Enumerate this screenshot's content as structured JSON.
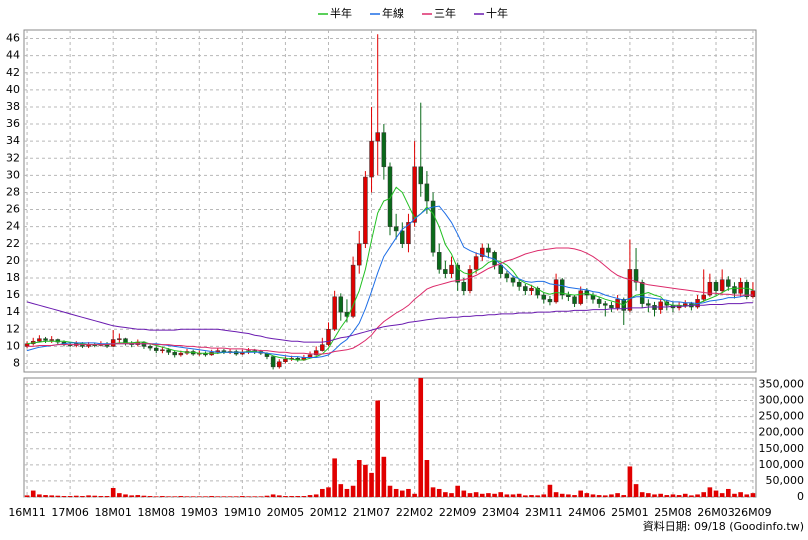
{
  "chart_data": {
    "type": "candlestick",
    "categories": [
      "16M11",
      null,
      null,
      null,
      null,
      null,
      null,
      "17M06",
      null,
      null,
      null,
      null,
      null,
      null,
      "18M01",
      null,
      null,
      null,
      null,
      null,
      null,
      "18M08",
      null,
      null,
      null,
      null,
      null,
      null,
      "19M03",
      null,
      null,
      null,
      null,
      null,
      null,
      "19M10",
      null,
      null,
      null,
      null,
      null,
      null,
      "20M05",
      null,
      null,
      null,
      null,
      null,
      null,
      "20M12",
      null,
      null,
      null,
      null,
      null,
      null,
      "21M07",
      null,
      null,
      null,
      null,
      null,
      null,
      "22M02",
      null,
      null,
      null,
      null,
      null,
      null,
      "22M09",
      null,
      null,
      null,
      null,
      null,
      null,
      "23M04",
      null,
      null,
      null,
      null,
      null,
      null,
      "23M11",
      null,
      null,
      null,
      null,
      null,
      null,
      "24M06",
      null,
      null,
      null,
      null,
      null,
      null,
      "25M01",
      null,
      null,
      null,
      null,
      null,
      null,
      "25M08",
      null,
      null,
      null,
      null,
      null,
      null,
      "26M03",
      null,
      null,
      null,
      null,
      null,
      "26M09"
    ],
    "open": [
      10.0,
      10.3,
      10.6,
      10.9,
      10.7,
      10.8,
      10.5,
      10.2,
      10.1,
      10.3,
      10.0,
      10.2,
      10.1,
      10.3,
      10.0,
      10.8,
      10.9,
      10.4,
      10.2,
      10.5,
      10.0,
      9.8,
      9.5,
      9.6,
      9.3,
      9.0,
      9.2,
      9.4,
      9.1,
      9.2,
      9.0,
      9.3,
      9.5,
      9.3,
      9.4,
      9.1,
      9.3,
      9.5,
      9.4,
      9.2,
      8.8,
      7.6,
      8.2,
      8.5,
      8.6,
      8.4,
      8.7,
      9.0,
      9.5,
      10.2,
      12.0,
      15.8,
      14.0,
      13.5,
      19.5,
      22.0,
      29.8,
      34.0,
      35.0,
      31.0,
      24.0,
      23.5,
      22.0,
      24.5,
      31.0,
      29.0,
      27.0,
      21.0,
      19.0,
      18.5,
      19.5,
      17.5,
      16.5,
      19.0,
      20.5,
      21.5,
      21.0,
      19.5,
      18.5,
      18.0,
      17.5,
      17.0,
      16.5,
      16.8,
      16.0,
      15.5,
      15.2,
      17.8,
      16.0,
      15.8,
      15.0,
      16.5,
      16.0,
      15.5,
      15.0,
      14.8,
      14.5,
      15.5,
      14.2,
      19.0,
      17.5,
      15.0,
      14.8,
      14.3,
      15.2,
      14.8,
      14.5,
      14.8,
      15.0,
      14.6,
      15.5,
      16.0,
      17.5,
      16.5,
      17.8,
      17.0,
      16.2,
      17.5,
      15.8
    ],
    "high": [
      10.6,
      11.0,
      11.3,
      11.1,
      11.2,
      10.9,
      10.7,
      10.5,
      10.6,
      10.5,
      10.5,
      10.4,
      10.6,
      10.5,
      11.9,
      11.5,
      11.0,
      10.6,
      10.8,
      10.6,
      10.2,
      10.0,
      9.9,
      9.8,
      9.5,
      9.5,
      9.7,
      9.6,
      9.5,
      9.4,
      9.6,
      9.8,
      9.7,
      9.7,
      9.6,
      9.6,
      9.8,
      9.7,
      9.6,
      9.3,
      8.9,
      8.5,
      8.8,
      8.9,
      8.8,
      9.0,
      9.4,
      10.0,
      11.0,
      12.8,
      16.5,
      16.2,
      15.5,
      20.5,
      23.5,
      30.5,
      38.0,
      46.5,
      36.0,
      31.5,
      25.5,
      24.5,
      25.5,
      34.0,
      38.5,
      30.5,
      28.0,
      22.0,
      20.0,
      20.5,
      19.8,
      18.0,
      19.5,
      21.0,
      22.0,
      22.0,
      21.2,
      19.8,
      18.8,
      18.3,
      17.8,
      17.3,
      17.2,
      17.0,
      16.3,
      15.9,
      18.5,
      18.0,
      16.4,
      16.0,
      17.0,
      16.8,
      16.3,
      15.8,
      15.3,
      15.2,
      16.0,
      15.7,
      22.5,
      21.5,
      17.8,
      15.5,
      15.2,
      15.6,
      15.4,
      15.2,
      15.2,
      15.4,
      15.2,
      16.0,
      19.0,
      18.5,
      17.8,
      19.0,
      18.2,
      17.5,
      18.0,
      17.8,
      17.5
    ],
    "low": [
      9.8,
      10.1,
      10.5,
      10.4,
      10.4,
      10.2,
      10.0,
      9.9,
      9.9,
      9.8,
      9.8,
      9.9,
      10.0,
      9.8,
      9.9,
      10.4,
      10.1,
      9.9,
      10.0,
      9.7,
      9.5,
      9.2,
      9.2,
      9.0,
      8.7,
      8.8,
      9.0,
      8.9,
      8.9,
      8.8,
      8.9,
      9.1,
      9.1,
      9.1,
      8.9,
      9.0,
      9.1,
      9.1,
      9.0,
      8.5,
      7.3,
      7.4,
      8.0,
      8.3,
      8.2,
      8.3,
      8.6,
      8.9,
      9.4,
      10.0,
      11.8,
      13.0,
      12.8,
      13.3,
      18.5,
      21.5,
      28.0,
      30.0,
      29.5,
      23.0,
      22.5,
      21.5,
      21.0,
      24.0,
      27.5,
      25.5,
      20.5,
      18.5,
      18.0,
      18.0,
      16.5,
      16.0,
      16.2,
      18.5,
      20.0,
      20.3,
      19.0,
      18.0,
      17.5,
      17.0,
      16.5,
      16.0,
      16.0,
      15.6,
      15.0,
      14.8,
      15.0,
      15.5,
      15.3,
      14.6,
      14.8,
      15.5,
      15.0,
      14.5,
      13.5,
      14.0,
      14.2,
      12.5,
      14.0,
      16.5,
      14.5,
      14.0,
      13.5,
      13.8,
      14.2,
      14.0,
      14.2,
      14.5,
      14.2,
      14.4,
      15.2,
      15.8,
      16.0,
      16.2,
      16.5,
      15.6,
      15.8,
      15.5,
      15.6
    ],
    "close": [
      10.3,
      10.6,
      10.9,
      10.7,
      10.8,
      10.5,
      10.2,
      10.1,
      10.3,
      10.0,
      10.2,
      10.1,
      10.3,
      10.0,
      10.8,
      10.9,
      10.4,
      10.2,
      10.5,
      10.0,
      9.8,
      9.5,
      9.6,
      9.3,
      9.0,
      9.2,
      9.4,
      9.1,
      9.2,
      9.0,
      9.3,
      9.5,
      9.3,
      9.4,
      9.1,
      9.3,
      9.5,
      9.4,
      9.2,
      8.8,
      7.6,
      8.2,
      8.5,
      8.6,
      8.4,
      8.7,
      9.0,
      9.5,
      10.2,
      12.0,
      15.8,
      14.0,
      13.5,
      19.5,
      22.0,
      29.8,
      34.0,
      35.0,
      31.0,
      24.0,
      23.5,
      22.0,
      24.5,
      31.0,
      29.0,
      27.0,
      21.0,
      19.0,
      18.5,
      19.5,
      17.5,
      16.5,
      19.0,
      20.5,
      21.5,
      21.0,
      19.5,
      18.5,
      18.0,
      17.5,
      17.0,
      16.5,
      16.8,
      16.0,
      15.5,
      15.2,
      17.8,
      16.0,
      15.8,
      15.0,
      16.5,
      16.0,
      15.5,
      15.0,
      14.8,
      14.5,
      15.5,
      14.2,
      19.0,
      17.5,
      15.0,
      14.8,
      14.3,
      15.2,
      14.8,
      14.5,
      14.8,
      15.0,
      14.6,
      15.5,
      16.0,
      17.5,
      16.5,
      17.8,
      17.0,
      16.2,
      17.5,
      15.8,
      16.5
    ],
    "volume": [
      5000,
      20000,
      8000,
      6000,
      5000,
      4000,
      3000,
      3000,
      4000,
      3000,
      5000,
      4000,
      3000,
      3000,
      28000,
      12000,
      8000,
      5000,
      6000,
      4000,
      3000,
      2000,
      3000,
      2000,
      2000,
      3000,
      2000,
      2000,
      2000,
      2000,
      3000,
      2000,
      2000,
      2000,
      2000,
      3000,
      2000,
      2000,
      2000,
      4000,
      8000,
      5000,
      3000,
      3000,
      3000,
      3000,
      6000,
      8000,
      25000,
      30000,
      120000,
      40000,
      25000,
      35000,
      115000,
      100000,
      75000,
      300000,
      125000,
      35000,
      25000,
      20000,
      25000,
      10000,
      370000,
      115000,
      30000,
      25000,
      15000,
      12000,
      35000,
      20000,
      12000,
      15000,
      10000,
      12000,
      10000,
      15000,
      8000,
      8000,
      10000,
      5000,
      6000,
      5000,
      8000,
      38000,
      15000,
      10000,
      8000,
      6000,
      20000,
      12000,
      8000,
      6000,
      5000,
      8000,
      12000,
      6000,
      95000,
      40000,
      15000,
      12000,
      8000,
      10000,
      6000,
      8000,
      6000,
      10000,
      5000,
      8000,
      15000,
      30000,
      20000,
      12000,
      25000,
      10000,
      15000,
      8000,
      12000
    ],
    "series": [
      {
        "name": "半年",
        "color": "#22c022",
        "values": [
          10.3,
          10.4,
          10.5,
          10.6,
          10.6,
          10.6,
          10.6,
          10.5,
          10.4,
          10.3,
          10.2,
          10.2,
          10.2,
          10.2,
          10.3,
          10.4,
          10.4,
          10.4,
          10.5,
          10.5,
          10.3,
          10.1,
          9.9,
          9.7,
          9.5,
          9.4,
          9.3,
          9.3,
          9.2,
          9.2,
          9.2,
          9.2,
          9.3,
          9.3,
          9.3,
          9.3,
          9.4,
          9.4,
          9.3,
          9.2,
          8.9,
          8.7,
          8.6,
          8.5,
          8.4,
          8.4,
          8.6,
          8.8,
          9.1,
          9.8,
          11.0,
          12.2,
          13.2,
          14.8,
          16.5,
          19.0,
          22.4,
          25.6,
          27.0,
          27.3,
          28.6,
          28.0,
          26.5,
          25.0,
          25.5,
          26.3,
          25.5,
          24.0,
          21.9,
          20.8,
          19.1,
          18.6,
          18.4,
          18.8,
          19.2,
          19.8,
          20.1,
          19.9,
          19.5,
          18.8,
          17.8,
          17.4,
          17.1,
          16.7,
          16.3,
          16.1,
          16.3,
          16.2,
          16.1,
          16.0,
          16.1,
          16.2,
          16.0,
          15.8,
          15.5,
          15.3,
          15.1,
          14.8,
          15.6,
          16.0,
          16.1,
          16.3,
          16.0,
          15.8,
          15.0,
          14.8,
          14.8,
          14.7,
          14.8,
          15.0,
          15.3,
          15.6,
          15.9,
          16.3,
          16.7,
          16.8,
          16.8,
          16.8,
          16.6
        ]
      },
      {
        "name": "年線",
        "color": "#1e6ee6",
        "values": [
          9.5,
          9.7,
          9.9,
          10.0,
          10.1,
          10.2,
          10.3,
          10.4,
          10.4,
          10.4,
          10.4,
          10.4,
          10.3,
          10.3,
          10.3,
          10.3,
          10.3,
          10.3,
          10.3,
          10.3,
          10.3,
          10.3,
          10.2,
          10.1,
          10.0,
          9.9,
          9.8,
          9.7,
          9.6,
          9.5,
          9.4,
          9.3,
          9.3,
          9.3,
          9.3,
          9.3,
          9.3,
          9.3,
          9.3,
          9.2,
          9.1,
          9.0,
          8.9,
          8.8,
          8.8,
          8.7,
          8.7,
          8.7,
          8.8,
          9.0,
          9.6,
          10.3,
          10.8,
          11.7,
          12.7,
          14.4,
          16.4,
          18.6,
          20.5,
          21.6,
          22.7,
          23.7,
          24.2,
          24.9,
          25.5,
          26.1,
          26.3,
          26.4,
          25.5,
          24.5,
          23.1,
          21.6,
          21.2,
          20.9,
          20.7,
          20.4,
          20.2,
          19.6,
          18.9,
          18.2,
          17.9,
          17.6,
          17.5,
          17.6,
          17.6,
          17.3,
          17.2,
          17.1,
          16.9,
          16.8,
          16.7,
          16.6,
          16.4,
          16.3,
          16.0,
          15.8,
          15.6,
          15.4,
          15.6,
          15.8,
          15.8,
          15.7,
          15.6,
          15.5,
          15.4,
          15.2,
          15.2,
          15.1,
          15.1,
          15.0,
          15.1,
          15.3,
          15.4,
          15.5,
          15.7,
          15.7,
          15.8,
          16.0,
          16.0
        ]
      },
      {
        "name": "三年",
        "color": "#dc2a6a",
        "values": [
          10.0,
          10.0,
          10.1,
          10.1,
          10.1,
          10.2,
          10.2,
          10.2,
          10.2,
          10.2,
          10.2,
          10.2,
          10.2,
          10.2,
          10.3,
          10.3,
          10.3,
          10.3,
          10.3,
          10.3,
          10.3,
          10.2,
          10.2,
          10.2,
          10.1,
          10.1,
          10.0,
          10.0,
          9.9,
          9.9,
          9.8,
          9.8,
          9.8,
          9.7,
          9.7,
          9.7,
          9.6,
          9.6,
          9.5,
          9.5,
          9.4,
          9.3,
          9.3,
          9.2,
          9.2,
          9.2,
          9.1,
          9.1,
          9.1,
          9.2,
          9.4,
          9.5,
          9.6,
          9.8,
          10.2,
          10.7,
          11.3,
          12.2,
          12.9,
          13.4,
          13.9,
          14.3,
          14.8,
          15.5,
          16.1,
          16.7,
          17.0,
          17.2,
          17.4,
          17.6,
          17.7,
          17.8,
          18.0,
          18.3,
          18.7,
          19.1,
          19.4,
          19.7,
          20.0,
          20.2,
          20.5,
          20.8,
          21.0,
          21.2,
          21.3,
          21.4,
          21.5,
          21.5,
          21.5,
          21.4,
          21.2,
          20.9,
          20.5,
          20.0,
          19.4,
          18.8,
          18.3,
          18.0,
          17.8,
          17.6,
          17.4,
          17.2,
          17.1,
          17.0,
          16.9,
          16.8,
          16.7,
          16.6,
          16.5,
          16.4,
          16.3,
          16.2,
          16.2,
          16.1,
          16.1,
          16.0,
          16.0,
          16.0,
          16.0
        ]
      },
      {
        "name": "十年",
        "color": "#6a1bb0",
        "values": [
          15.2,
          15.0,
          14.8,
          14.6,
          14.4,
          14.2,
          14.0,
          13.8,
          13.6,
          13.4,
          13.2,
          13.0,
          12.8,
          12.6,
          12.4,
          12.3,
          12.2,
          12.1,
          12.0,
          12.0,
          11.9,
          11.9,
          11.9,
          11.9,
          11.9,
          12.0,
          12.0,
          12.0,
          12.0,
          12.0,
          12.0,
          12.0,
          11.9,
          11.8,
          11.7,
          11.6,
          11.5,
          11.3,
          11.2,
          11.0,
          10.9,
          10.8,
          10.7,
          10.6,
          10.6,
          10.5,
          10.5,
          10.5,
          10.5,
          10.6,
          10.8,
          11.0,
          11.1,
          11.3,
          11.5,
          11.7,
          11.9,
          12.1,
          12.3,
          12.4,
          12.5,
          12.6,
          12.8,
          12.9,
          13.0,
          13.1,
          13.2,
          13.3,
          13.3,
          13.4,
          13.4,
          13.5,
          13.5,
          13.6,
          13.6,
          13.7,
          13.7,
          13.8,
          13.8,
          13.8,
          13.9,
          13.9,
          13.9,
          14.0,
          14.0,
          14.0,
          14.1,
          14.1,
          14.1,
          14.2,
          14.2,
          14.2,
          14.3,
          14.3,
          14.3,
          14.4,
          14.4,
          14.4,
          14.5,
          14.5,
          14.5,
          14.6,
          14.6,
          14.6,
          14.6,
          14.7,
          14.7,
          14.7,
          14.8,
          14.8,
          14.8,
          14.9,
          14.9,
          14.9,
          15.0,
          15.0,
          15.0,
          15.1,
          15.1
        ]
      }
    ],
    "up_color": "#e00000",
    "down_color": "#0a6a1a",
    "volume_color": "#e00000",
    "ylim": [
      7,
      47
    ],
    "yticks": [
      8,
      10,
      12,
      14,
      16,
      18,
      20,
      22,
      24,
      26,
      28,
      30,
      32,
      34,
      36,
      38,
      40,
      42,
      44,
      46
    ],
    "y2lim": [
      0,
      370000
    ],
    "y2ticks": [
      0,
      {
        "value": 50000,
        "label": "50,000"
      },
      {
        "value": 100000,
        "label": "100,000"
      },
      {
        "value": 150000,
        "label": "150,000"
      },
      {
        "value": 200000,
        "label": "200,000"
      },
      {
        "value": 250000,
        "label": "250,000"
      },
      {
        "value": 300000,
        "label": "300,000"
      },
      {
        "value": 350000,
        "label": "350,000"
      }
    ],
    "grid": true,
    "source": "資料日期: 09/18 (Goodinfo.tw)"
  }
}
